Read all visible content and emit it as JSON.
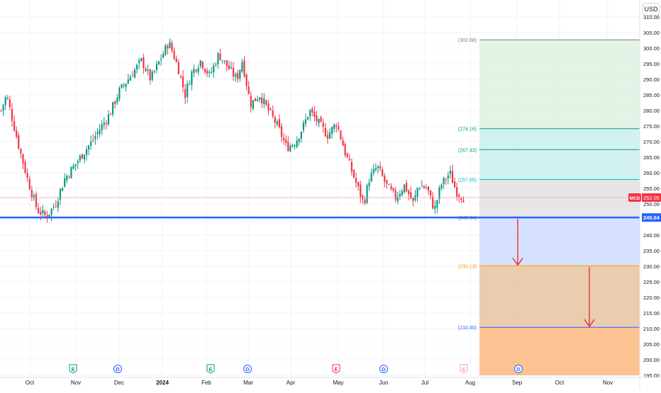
{
  "currency": "USD",
  "symbol": "MCD",
  "last_price": "252.05",
  "support_price": "245.64",
  "chart_data": {
    "type": "candlestick",
    "y_axis": {
      "min": 195,
      "max": 310,
      "step": 5
    },
    "x_axis_labels": [
      "Oct",
      "Nov",
      "Dec",
      "2024",
      "Feb",
      "Mar",
      "Apr",
      "May",
      "Jun",
      "Jul",
      "Aug",
      "Sep",
      "Oct",
      "Nov"
    ],
    "price_path": [
      [
        0,
        280
      ],
      [
        0.6,
        285
      ],
      [
        2,
        268
      ],
      [
        3,
        257
      ],
      [
        4,
        248
      ],
      [
        5,
        246
      ],
      [
        6,
        250
      ],
      [
        7,
        258
      ],
      [
        8,
        262
      ],
      [
        10,
        270
      ],
      [
        12,
        279
      ],
      [
        13,
        286
      ],
      [
        14,
        290
      ],
      [
        15.5,
        296
      ],
      [
        16.5,
        290
      ],
      [
        17.5,
        296
      ],
      [
        18.5,
        302
      ],
      [
        19.5,
        294
      ],
      [
        20.3,
        285
      ],
      [
        21,
        292
      ],
      [
        22,
        296
      ],
      [
        23,
        291
      ],
      [
        24,
        298
      ],
      [
        25,
        294
      ],
      [
        26,
        290
      ],
      [
        26.6,
        296
      ],
      [
        27.5,
        282
      ],
      [
        28.5,
        285
      ],
      [
        29.5,
        280
      ],
      [
        30.5,
        275
      ],
      [
        31.5,
        268
      ],
      [
        32.5,
        270
      ],
      [
        33.5,
        276
      ],
      [
        34,
        280
      ],
      [
        35,
        276
      ],
      [
        36,
        272
      ],
      [
        37,
        276
      ],
      [
        38,
        266
      ],
      [
        39,
        258
      ],
      [
        40,
        250
      ],
      [
        40.6,
        258
      ],
      [
        41.5,
        262
      ],
      [
        42.5,
        256
      ],
      [
        43.5,
        252
      ],
      [
        44.5,
        256
      ],
      [
        45.5,
        250
      ],
      [
        46,
        256
      ],
      [
        47,
        255
      ],
      [
        47.8,
        248
      ],
      [
        48.5,
        256
      ],
      [
        49.5,
        260
      ],
      [
        50.2,
        254
      ],
      [
        51,
        252
      ]
    ],
    "levels": [
      {
        "label": "(302.68)",
        "price": 302.68,
        "color": "#787b86"
      },
      {
        "label": "(274.16)",
        "price": 274.16,
        "color": "#089981"
      },
      {
        "label": "(267.43)",
        "price": 267.43,
        "color": "#089981"
      },
      {
        "label": "(257.85)",
        "price": 257.85,
        "color": "#00bcd4"
      },
      {
        "label": "(245.64)",
        "price": 245.64,
        "color": "#787b86"
      },
      {
        "label": "(230.13)",
        "price": 230.13,
        "color": "#ff9800"
      },
      {
        "label": "(210.40)",
        "price": 210.4,
        "color": "#2962ff"
      }
    ],
    "zones": [
      {
        "from": 274.16,
        "to": 302.68,
        "color": "#e0f2e3"
      },
      {
        "from": 257.85,
        "to": 274.16,
        "color": "#cdf1ef"
      },
      {
        "from": 245.64,
        "to": 257.85,
        "color": "#e3e3e4"
      },
      {
        "from": 230.13,
        "to": 245.64,
        "color": "#d2deff"
      },
      {
        "from": 210.4,
        "to": 230.13,
        "color": "#e8c6a5"
      },
      {
        "from": 195,
        "to": 210.4,
        "color": "#fdbb86"
      }
    ],
    "support_line": 245.64,
    "last_price_line": 252.05,
    "arrows": [
      {
        "from": 245.64,
        "to": 230.13
      },
      {
        "from": 230.13,
        "to": 210.4
      }
    ],
    "events": [
      {
        "letter": "E",
        "type": "earnings",
        "color": "#089981"
      },
      {
        "letter": "D",
        "type": "dividend",
        "color": "#2962ff"
      },
      {
        "letter": "E",
        "type": "earnings",
        "color": "#089981"
      },
      {
        "letter": "D",
        "type": "dividend",
        "color": "#2962ff"
      },
      {
        "letter": "E",
        "type": "earnings",
        "color": "#f23645"
      },
      {
        "letter": "D",
        "type": "dividend",
        "color": "#2962ff"
      },
      {
        "letter": "E",
        "type": "earnings-upcoming",
        "color": "#f7a1a9"
      },
      {
        "letter": "D",
        "type": "dividend",
        "color": "#2962ff"
      }
    ],
    "colors": {
      "up": "#089981",
      "down": "#f23645",
      "support": "#2962ff",
      "arrow": "#f23645",
      "symbol_badge": "#f23645"
    }
  }
}
